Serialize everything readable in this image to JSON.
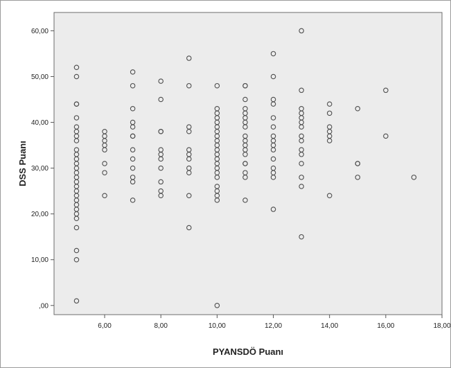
{
  "chart_data": {
    "type": "scatter",
    "xlabel": "PYANSDÖ Puanı",
    "ylabel": "DSS Puanı",
    "xlim": [
      4.2,
      18
    ],
    "ylim": [
      -2,
      64
    ],
    "x_ticks": [
      6,
      8,
      10,
      12,
      14,
      16,
      18
    ],
    "x_tick_labels": [
      "6,00",
      "8,00",
      "10,00",
      "12,00",
      "14,00",
      "16,00",
      "18,00"
    ],
    "y_ticks": [
      0,
      10,
      20,
      30,
      40,
      50,
      60
    ],
    "y_tick_labels": [
      ",00",
      "10,00",
      "20,00",
      "30,00",
      "40,00",
      "50,00",
      "60,00"
    ],
    "grid": false,
    "plot_background": "#ececec",
    "marker": "open-circle",
    "marker_color": "#4d4d4d",
    "points": [
      [
        5,
        52
      ],
      [
        5,
        50
      ],
      [
        5,
        44
      ],
      [
        5,
        44
      ],
      [
        5,
        41
      ],
      [
        5,
        39
      ],
      [
        5,
        38
      ],
      [
        5,
        37
      ],
      [
        5,
        36
      ],
      [
        5,
        34
      ],
      [
        5,
        33
      ],
      [
        5,
        32
      ],
      [
        5,
        31
      ],
      [
        5,
        30
      ],
      [
        5,
        29
      ],
      [
        5,
        28
      ],
      [
        5,
        27
      ],
      [
        5,
        26
      ],
      [
        5,
        25
      ],
      [
        5,
        24
      ],
      [
        5,
        23
      ],
      [
        5,
        22
      ],
      [
        5,
        21
      ],
      [
        5,
        20
      ],
      [
        5,
        19
      ],
      [
        5,
        17
      ],
      [
        5,
        12
      ],
      [
        5,
        10
      ],
      [
        5,
        1
      ],
      [
        6,
        38
      ],
      [
        6,
        37
      ],
      [
        6,
        36
      ],
      [
        6,
        35
      ],
      [
        6,
        34
      ],
      [
        6,
        31
      ],
      [
        6,
        29
      ],
      [
        6,
        24
      ],
      [
        7,
        51
      ],
      [
        7,
        48
      ],
      [
        7,
        43
      ],
      [
        7,
        40
      ],
      [
        7,
        39
      ],
      [
        7,
        37
      ],
      [
        7,
        37
      ],
      [
        7,
        34
      ],
      [
        7,
        32
      ],
      [
        7,
        30
      ],
      [
        7,
        28
      ],
      [
        7,
        27
      ],
      [
        7,
        23
      ],
      [
        8,
        49
      ],
      [
        8,
        45
      ],
      [
        8,
        38
      ],
      [
        8,
        38
      ],
      [
        8,
        34
      ],
      [
        8,
        33
      ],
      [
        8,
        32
      ],
      [
        8,
        30
      ],
      [
        8,
        27
      ],
      [
        8,
        25
      ],
      [
        8,
        24
      ],
      [
        9,
        54
      ],
      [
        9,
        48
      ],
      [
        9,
        39
      ],
      [
        9,
        38
      ],
      [
        9,
        34
      ],
      [
        9,
        33
      ],
      [
        9,
        32
      ],
      [
        9,
        30
      ],
      [
        9,
        29
      ],
      [
        9,
        24
      ],
      [
        9,
        17
      ],
      [
        10,
        48
      ],
      [
        10,
        43
      ],
      [
        10,
        42
      ],
      [
        10,
        41
      ],
      [
        10,
        40
      ],
      [
        10,
        39
      ],
      [
        10,
        38
      ],
      [
        10,
        37
      ],
      [
        10,
        36
      ],
      [
        10,
        35
      ],
      [
        10,
        34
      ],
      [
        10,
        33
      ],
      [
        10,
        32
      ],
      [
        10,
        31
      ],
      [
        10,
        30
      ],
      [
        10,
        29
      ],
      [
        10,
        28
      ],
      [
        10,
        26
      ],
      [
        10,
        25
      ],
      [
        10,
        24
      ],
      [
        10,
        23
      ],
      [
        10,
        0
      ],
      [
        11,
        48
      ],
      [
        11,
        48
      ],
      [
        11,
        45
      ],
      [
        11,
        43
      ],
      [
        11,
        42
      ],
      [
        11,
        41
      ],
      [
        11,
        40
      ],
      [
        11,
        39
      ],
      [
        11,
        37
      ],
      [
        11,
        36
      ],
      [
        11,
        35
      ],
      [
        11,
        34
      ],
      [
        11,
        33
      ],
      [
        11,
        31
      ],
      [
        11,
        31
      ],
      [
        11,
        29
      ],
      [
        11,
        28
      ],
      [
        11,
        23
      ],
      [
        12,
        55
      ],
      [
        12,
        50
      ],
      [
        12,
        45
      ],
      [
        12,
        44
      ],
      [
        12,
        41
      ],
      [
        12,
        39
      ],
      [
        12,
        37
      ],
      [
        12,
        36
      ],
      [
        12,
        35
      ],
      [
        12,
        34
      ],
      [
        12,
        32
      ],
      [
        12,
        30
      ],
      [
        12,
        29
      ],
      [
        12,
        28
      ],
      [
        12,
        21
      ],
      [
        13,
        60
      ],
      [
        13,
        47
      ],
      [
        13,
        43
      ],
      [
        13,
        42
      ],
      [
        13,
        41
      ],
      [
        13,
        40
      ],
      [
        13,
        39
      ],
      [
        13,
        37
      ],
      [
        13,
        36
      ],
      [
        13,
        34
      ],
      [
        13,
        33
      ],
      [
        13,
        31
      ],
      [
        13,
        28
      ],
      [
        13,
        26
      ],
      [
        13,
        15
      ],
      [
        14,
        44
      ],
      [
        14,
        42
      ],
      [
        14,
        39
      ],
      [
        14,
        38
      ],
      [
        14,
        37
      ],
      [
        14,
        36
      ],
      [
        14,
        24
      ],
      [
        15,
        43
      ],
      [
        15,
        31
      ],
      [
        15,
        31
      ],
      [
        15,
        28
      ],
      [
        16,
        47
      ],
      [
        16,
        37
      ],
      [
        17,
        28
      ]
    ]
  }
}
